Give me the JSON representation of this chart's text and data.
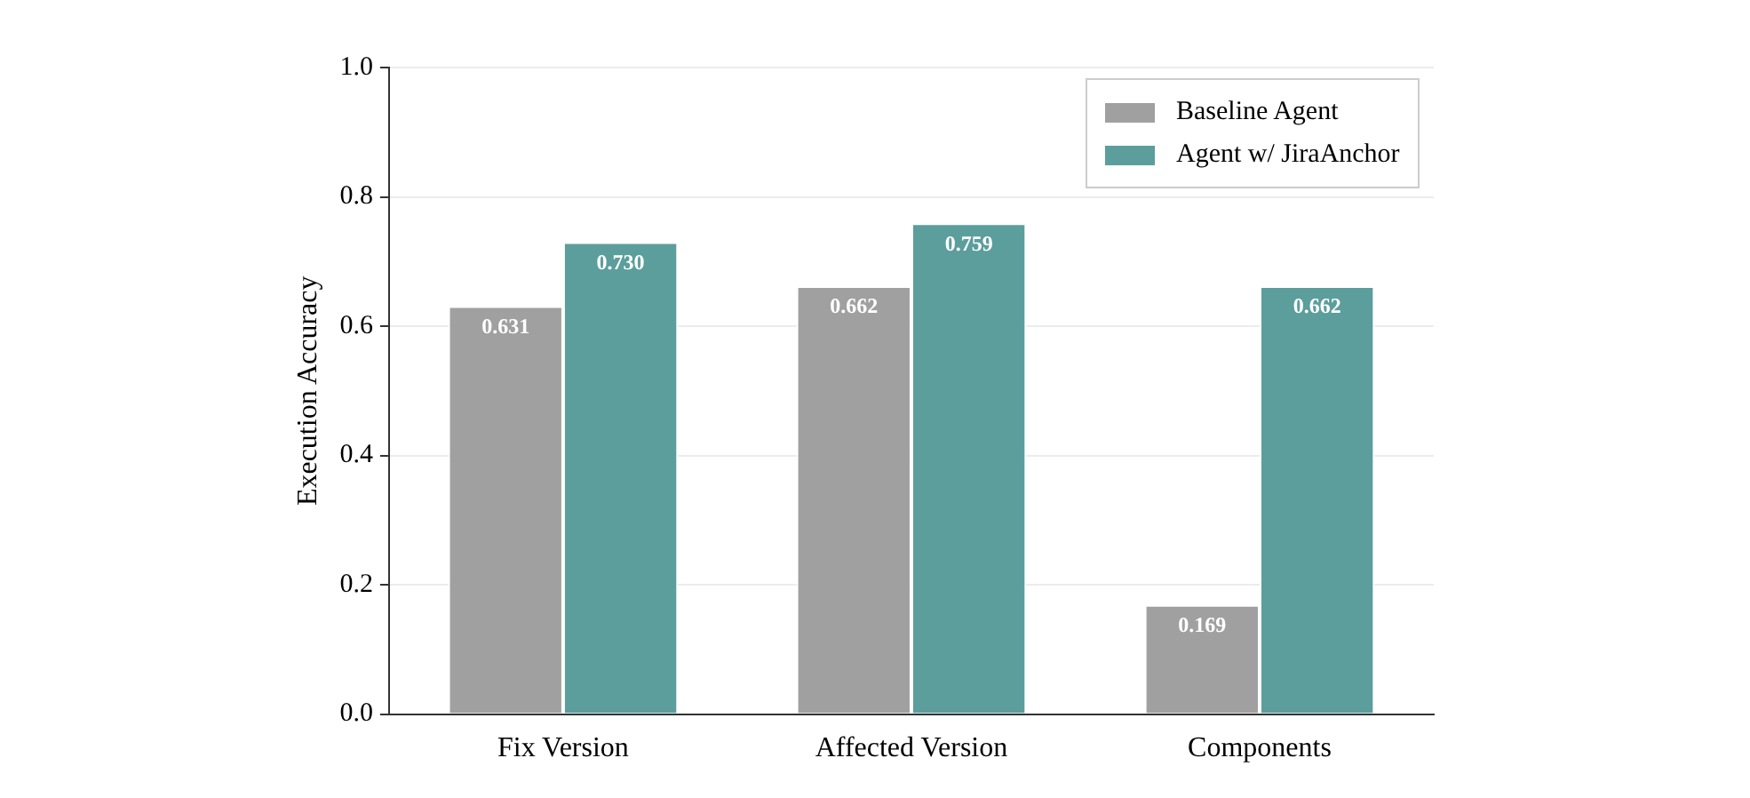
{
  "chart_data": {
    "type": "bar",
    "ylabel": "Execution Accuracy",
    "categories": [
      "Fix Version",
      "Affected Version",
      "Components"
    ],
    "series": [
      {
        "name": "Baseline Agent",
        "color": "#a0a0a0",
        "values": [
          0.631,
          0.662,
          0.169
        ],
        "value_labels": [
          "0.631",
          "0.662",
          "0.169"
        ]
      },
      {
        "name": "Agent w/ JiraAnchor",
        "color": "#5b9e9c",
        "values": [
          0.73,
          0.759,
          0.662
        ],
        "value_labels": [
          "0.730",
          "0.759",
          "0.662"
        ]
      }
    ],
    "ylim": [
      0,
      1
    ],
    "yticks": [
      {
        "value": 0,
        "label": "0.0"
      },
      {
        "value": 0.2,
        "label": "0.2"
      },
      {
        "value": 0.4,
        "label": "0.4"
      },
      {
        "value": 0.6,
        "label": "0.6"
      },
      {
        "value": 0.8,
        "label": "0.8"
      },
      {
        "value": 1,
        "label": "1.0"
      }
    ],
    "grid": "y",
    "legend": "top right"
  }
}
